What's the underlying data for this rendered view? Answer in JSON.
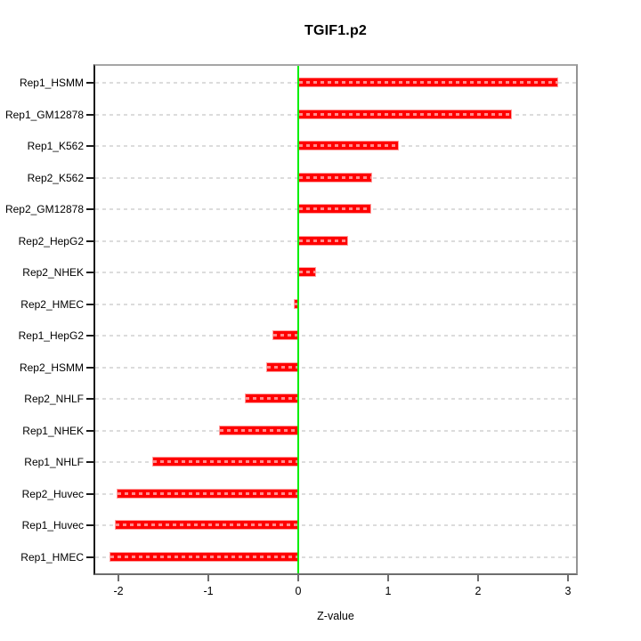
{
  "title": "TGIF1.p2",
  "xlabel": "Z-value",
  "chart_data": {
    "type": "bar",
    "orientation": "horizontal",
    "title": "TGIF1.p2",
    "xlabel": "Z-value",
    "ylabel": "",
    "categories": [
      "Rep1_HSMM",
      "Rep1_GM12878",
      "Rep1_K562",
      "Rep2_K562",
      "Rep2_GM12878",
      "Rep2_HepG2",
      "Rep2_NHEK",
      "Rep2_HMEC",
      "Rep1_HepG2",
      "Rep2_HSMM",
      "Rep2_NHLF",
      "Rep1_NHEK",
      "Rep1_NHLF",
      "Rep2_Huvec",
      "Rep1_Huvec",
      "Rep1_HMEC"
    ],
    "values": [
      2.89,
      2.38,
      1.12,
      0.82,
      0.81,
      0.55,
      0.2,
      -0.05,
      -0.29,
      -0.36,
      -0.59,
      -0.88,
      -1.62,
      -2.02,
      -2.04,
      -2.1
    ],
    "x_ticks": [
      "-2",
      "-1",
      "0",
      "1",
      "2",
      "3"
    ],
    "x_tick_values": [
      -2,
      -1,
      0,
      1,
      2,
      3
    ],
    "xlim": [
      -2.28,
      3.11
    ],
    "grid": "dashed horizontal line per category, drawn over bars",
    "zero_line": 0,
    "legend": "none",
    "colors": {
      "bar_fill": "#FF0000",
      "bar_edge": "#FF9F9F",
      "zero_line": "#00EE00",
      "gridline": "#DCDCDC",
      "axis_line": "#1A1A1A",
      "box_border": "#999999",
      "text": "#000000"
    }
  }
}
